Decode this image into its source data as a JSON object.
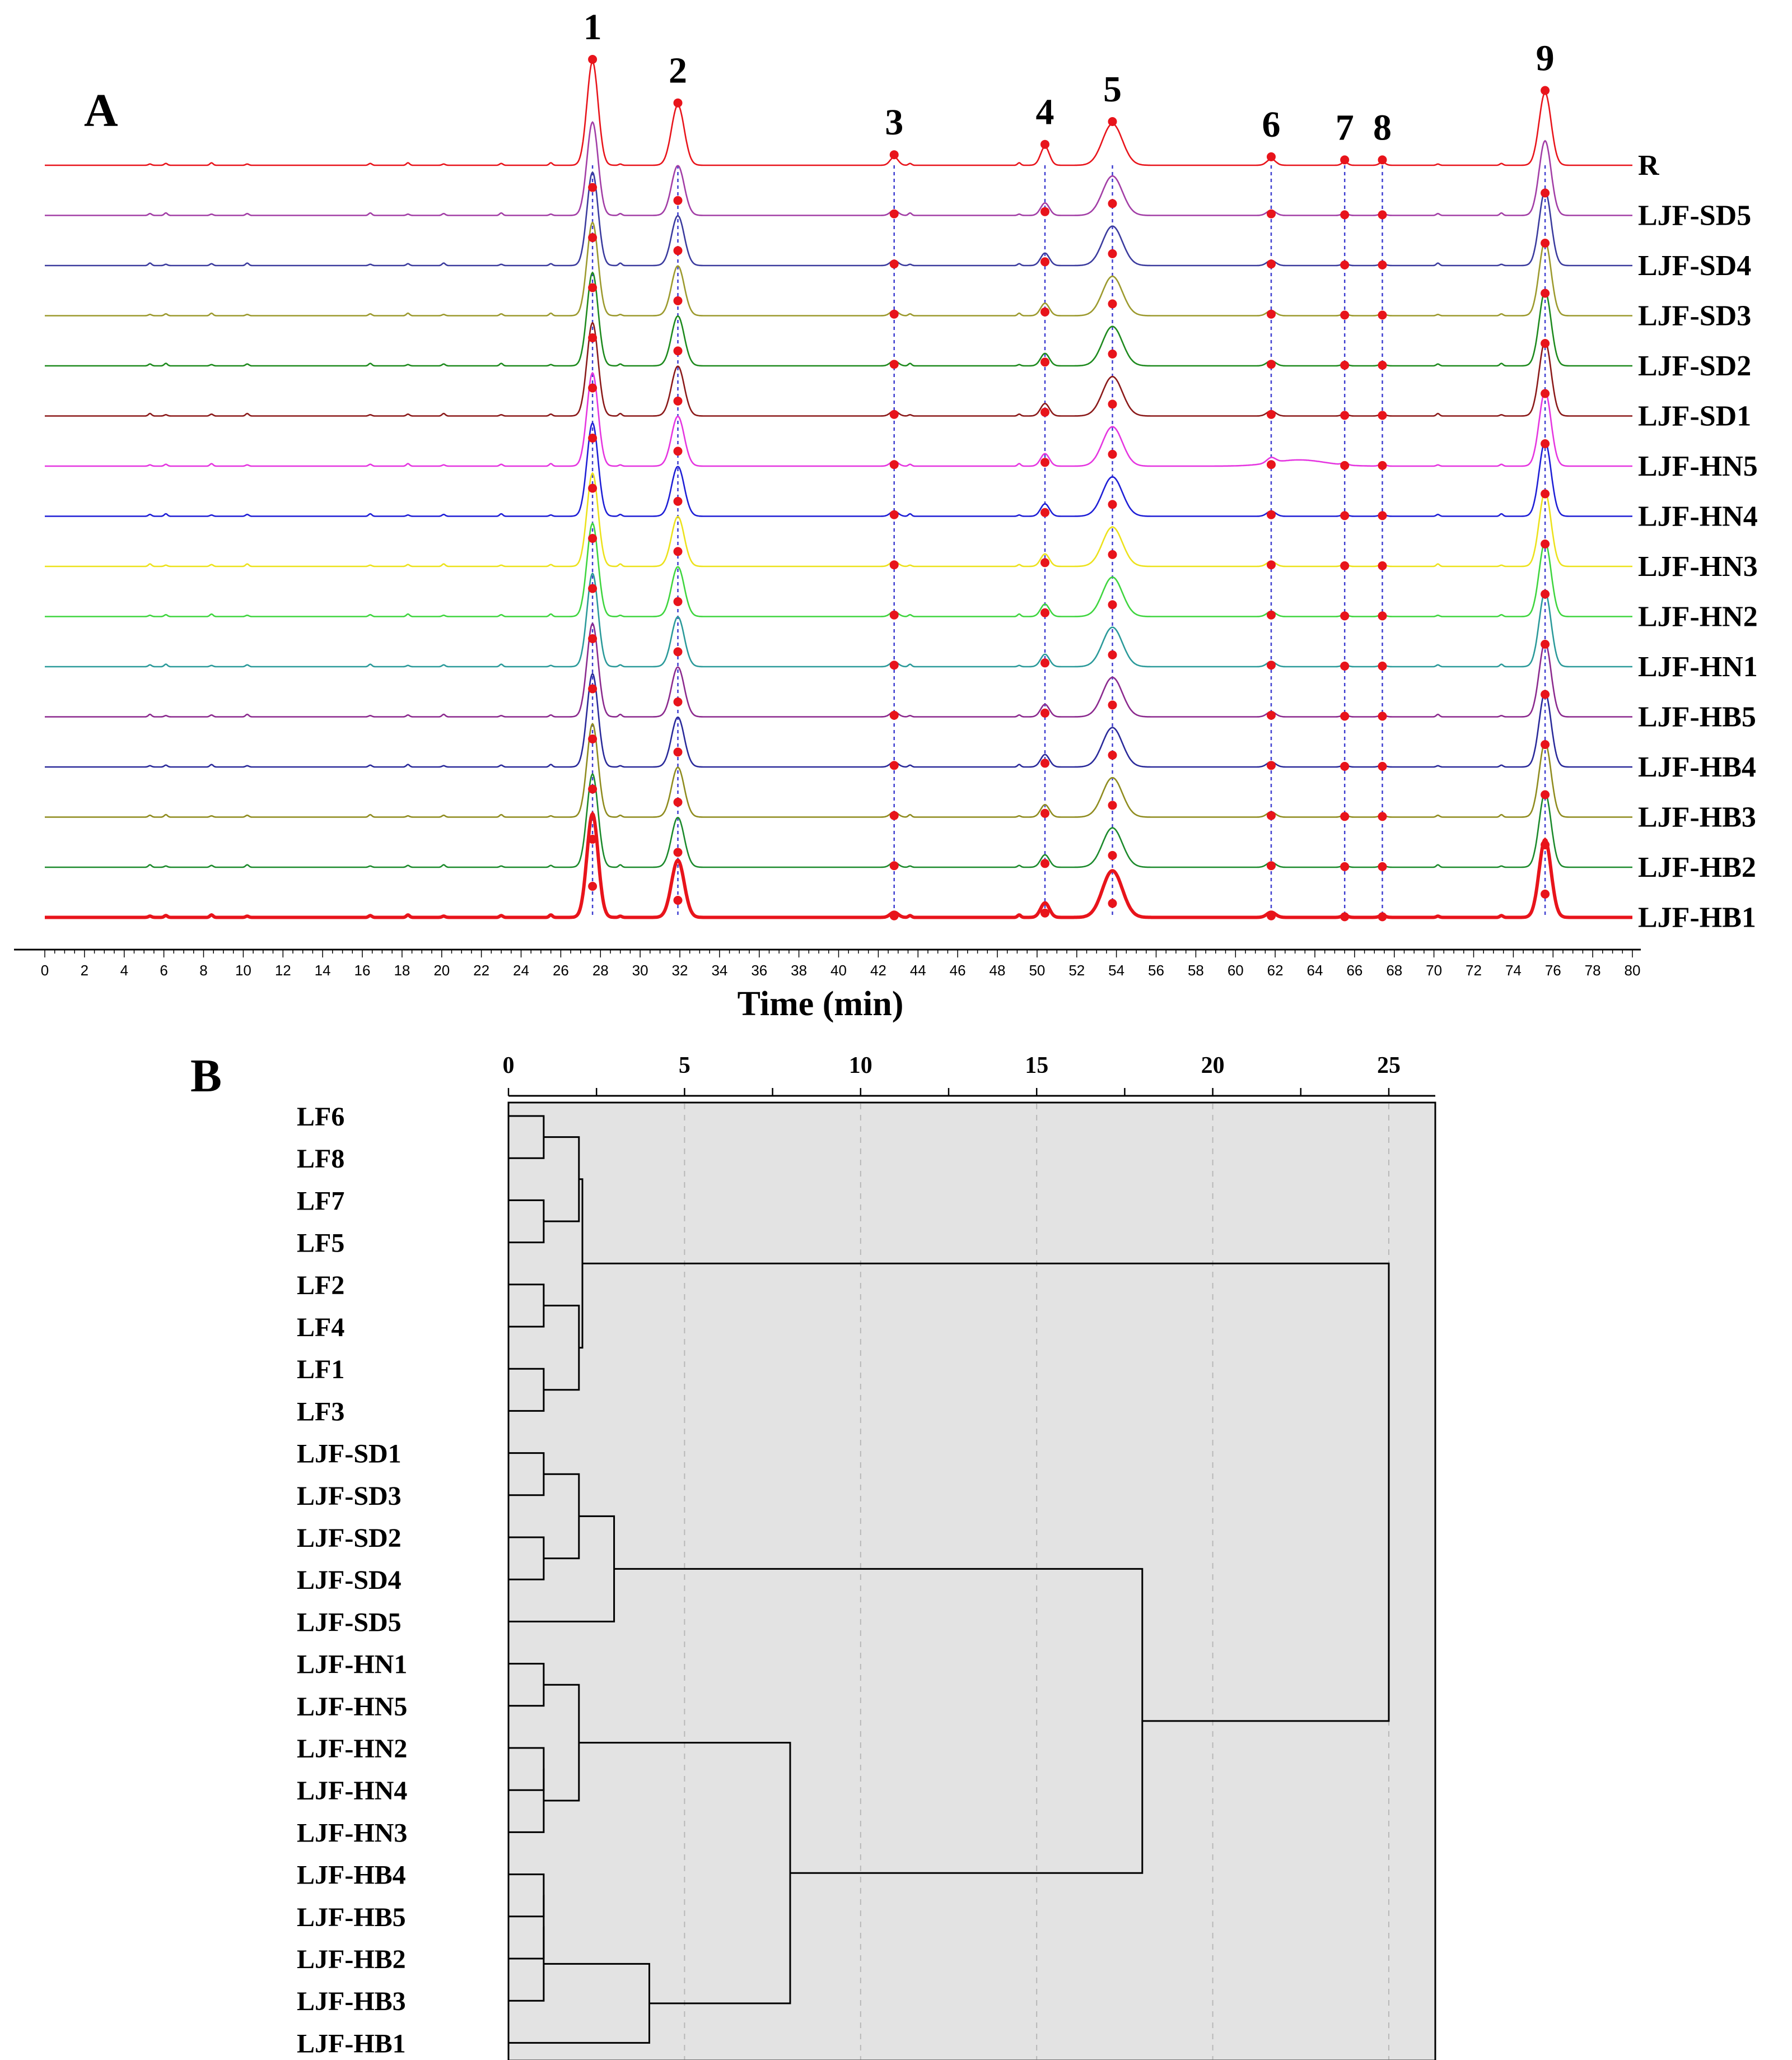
{
  "chart_data": [
    {
      "panel": "A",
      "type": "line",
      "xlabel": "Time (min)",
      "xlim": [
        0,
        80
      ],
      "xticks": [
        0,
        2,
        4,
        6,
        8,
        10,
        12,
        14,
        16,
        18,
        20,
        22,
        24,
        26,
        28,
        30,
        32,
        34,
        36,
        38,
        40,
        42,
        44,
        46,
        48,
        50,
        52,
        54,
        56,
        58,
        60,
        62,
        64,
        66,
        68,
        70,
        72,
        74,
        76,
        78,
        80
      ],
      "peaks": [
        {
          "label": "1",
          "time": 27.6
        },
        {
          "label": "2",
          "time": 31.9
        },
        {
          "label": "3",
          "time": 42.8
        },
        {
          "label": "4",
          "time": 50.4
        },
        {
          "label": "5",
          "time": 53.8
        },
        {
          "label": "6",
          "time": 61.8
        },
        {
          "label": "7",
          "time": 65.5
        },
        {
          "label": "8",
          "time": 67.4
        },
        {
          "label": "9",
          "time": 75.6
        }
      ],
      "peak_heights": {
        "R": [
          1.0,
          0.58,
          0.08,
          0.18,
          0.4,
          0.06,
          0.03,
          0.03,
          0.7
        ],
        "default": [
          0.9,
          0.48,
          0.05,
          0.12,
          0.38,
          0.05,
          0.02,
          0.02,
          0.72
        ],
        "LJF-HB1": [
          1.0,
          0.55,
          0.05,
          0.14,
          0.45,
          0.05,
          0.02,
          0.02,
          0.75
        ]
      },
      "series": [
        {
          "name": "R",
          "color": "#e8141b"
        },
        {
          "name": "LJF-SD5",
          "color": "#a23ea6"
        },
        {
          "name": "LJF-SD4",
          "color": "#3b3b9e"
        },
        {
          "name": "LJF-SD3",
          "color": "#9c9a2e"
        },
        {
          "name": "LJF-SD2",
          "color": "#1e8a1e"
        },
        {
          "name": "LJF-SD1",
          "color": "#8b1a1a"
        },
        {
          "name": "LJF-HN5",
          "color": "#e536e0"
        },
        {
          "name": "LJF-HN4",
          "color": "#1f1fd6"
        },
        {
          "name": "LJF-HN3",
          "color": "#ece21c"
        },
        {
          "name": "LJF-HN2",
          "color": "#3fd53f"
        },
        {
          "name": "LJF-HN1",
          "color": "#2b9a9a"
        },
        {
          "name": "LJF-HB5",
          "color": "#8b2a8e"
        },
        {
          "name": "LJF-HB4",
          "color": "#2a2a9a"
        },
        {
          "name": "LJF-HB3",
          "color": "#8f8c1f"
        },
        {
          "name": "LJF-HB2",
          "color": "#1c8a2c"
        },
        {
          "name": "LJF-HB1",
          "color": "#e8141b"
        }
      ],
      "marker_color": "#e8141b",
      "guide_color": "#3f3fd0"
    },
    {
      "panel": "B",
      "type": "dendrogram",
      "xlim": [
        0,
        25
      ],
      "xticks": [
        0,
        5,
        10,
        15,
        20,
        25
      ],
      "grid": true,
      "leaves": [
        "LF6",
        "LF8",
        "LF7",
        "LF5",
        "LF2",
        "LF4",
        "LF1",
        "LF3",
        "LJF-SD1",
        "LJF-SD3",
        "LJF-SD2",
        "LJF-SD4",
        "LJF-SD5",
        "LJF-HN1",
        "LJF-HN5",
        "LJF-HN2",
        "LJF-HN4",
        "LJF-HN3",
        "LJF-HB4",
        "LJF-HB5",
        "LJF-HB2",
        "LJF-HB3",
        "LJF-HB1"
      ],
      "merges": [
        {
          "id": "m1",
          "a": "L0",
          "b": "L1",
          "height": 1.0
        },
        {
          "id": "m2",
          "a": "L2",
          "b": "L3",
          "height": 1.0
        },
        {
          "id": "m3",
          "a": "m1",
          "b": "m2",
          "height": 2.0
        },
        {
          "id": "m4",
          "a": "L4",
          "b": "L5",
          "height": 1.0
        },
        {
          "id": "m5",
          "a": "L6",
          "b": "L7",
          "height": 1.0
        },
        {
          "id": "m6",
          "a": "m4",
          "b": "m5",
          "height": 2.0
        },
        {
          "id": "m7",
          "a": "m3",
          "b": "m6",
          "height": 2.1
        },
        {
          "id": "m8",
          "a": "L8",
          "b": "L9",
          "height": 1.0
        },
        {
          "id": "m9",
          "a": "L10",
          "b": "L11",
          "height": 1.0
        },
        {
          "id": "m10",
          "a": "m8",
          "b": "m9",
          "height": 2.0
        },
        {
          "id": "m11",
          "a": "m10",
          "b": "L12",
          "height": 3.0
        },
        {
          "id": "m12",
          "a": "L13",
          "b": "L14",
          "height": 1.0
        },
        {
          "id": "m13",
          "a": "L15",
          "b": "L16",
          "height": 1.0
        },
        {
          "id": "m14",
          "a": "m13",
          "b": "L17",
          "height": 1.0
        },
        {
          "id": "m15",
          "a": "m12",
          "b": "m14",
          "height": 2.0
        },
        {
          "id": "m16",
          "a": "L18",
          "b": "L19",
          "height": 1.0
        },
        {
          "id": "m17",
          "a": "m16",
          "b": "L20",
          "height": 1.0
        },
        {
          "id": "m18",
          "a": "m17",
          "b": "L21",
          "height": 1.0
        },
        {
          "id": "m19",
          "a": "m18",
          "b": "L22",
          "height": 4.0
        },
        {
          "id": "m20",
          "a": "m15",
          "b": "m19",
          "height": 8.0
        },
        {
          "id": "m21",
          "a": "m11",
          "b": "m20",
          "height": 18.0
        },
        {
          "id": "m22",
          "a": "m7",
          "b": "m21",
          "height": 25.0
        }
      ]
    }
  ],
  "panel_a": {
    "letter": "A",
    "xlabel": "Time (min)"
  },
  "panel_b": {
    "letter": "B"
  }
}
